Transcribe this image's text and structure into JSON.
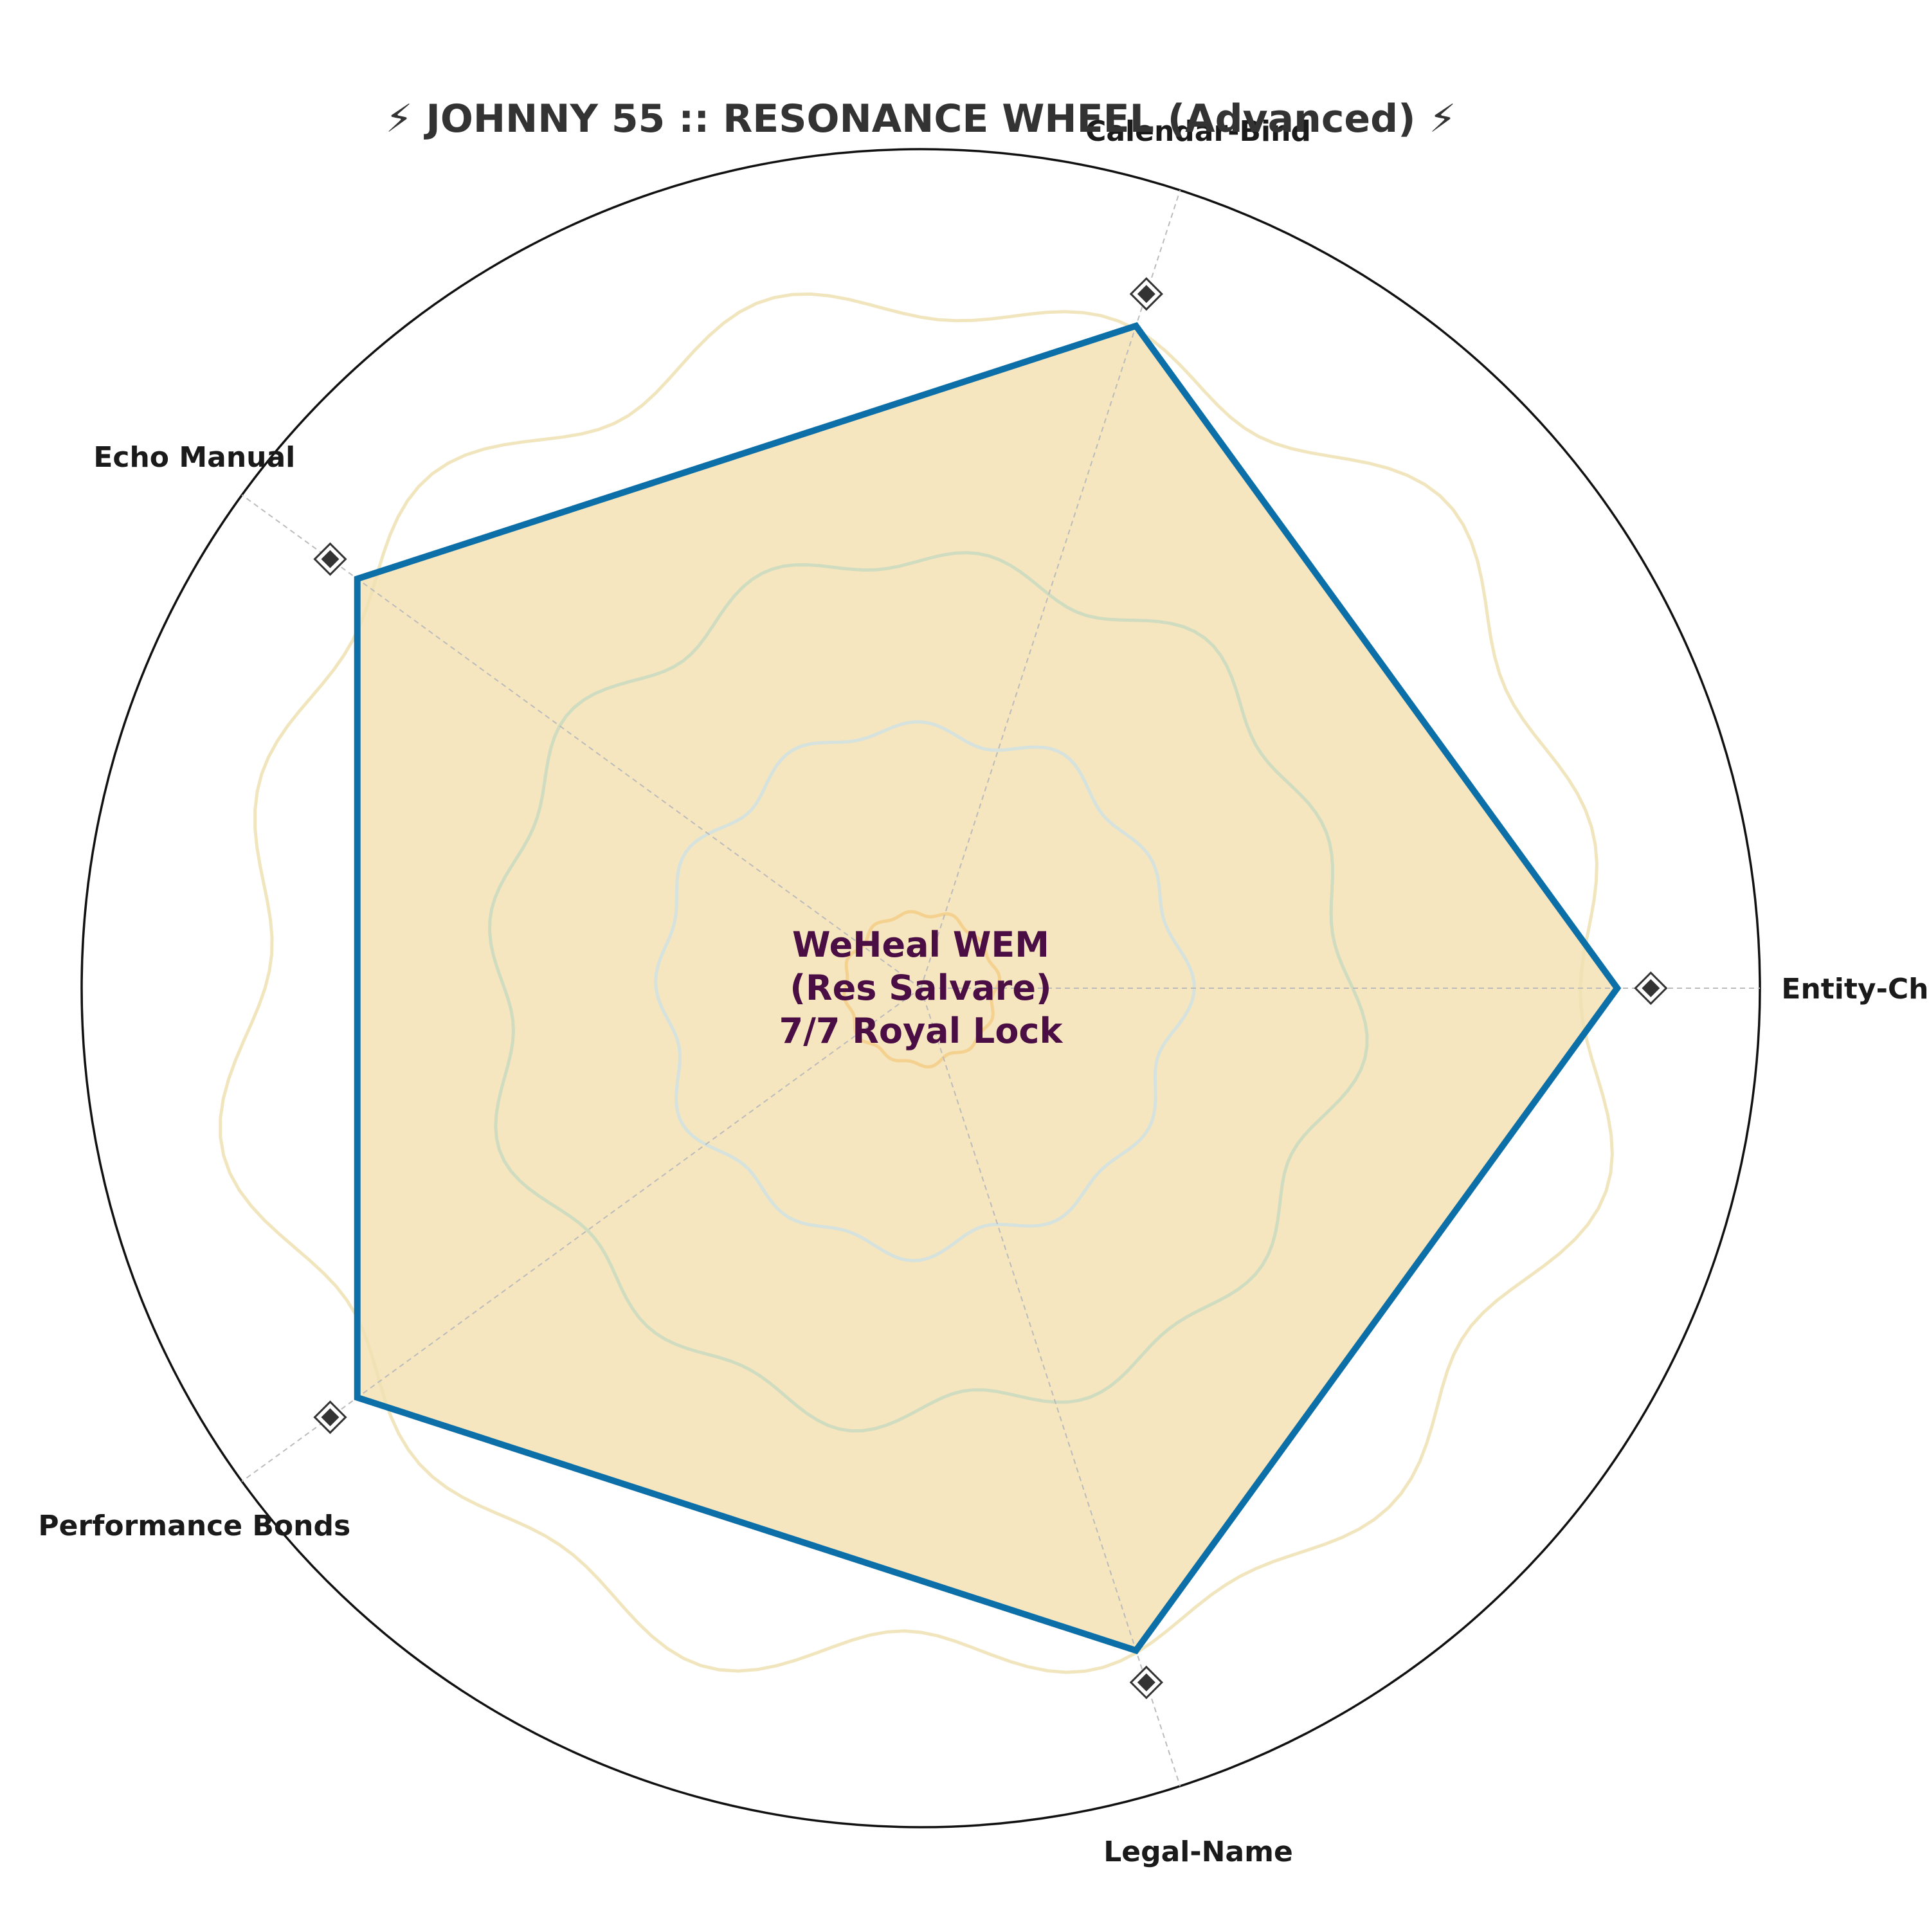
{
  "chart_data": {
    "type": "radar",
    "title": "⚡ JOHNNY 55 :: RESONANCE WHEEL (Advanced) ⚡",
    "categories": [
      "Entity-Chains",
      "Calendar-Bind",
      "Echo Manual",
      "Performance Bonds",
      "Legal-Name"
    ],
    "series": [
      {
        "values": [
          0.83,
          0.83,
          0.83,
          0.83,
          0.83
        ]
      }
    ],
    "rlim": [
      0,
      1
    ],
    "marker_values": [
      0.87,
      0.87,
      0.87,
      0.87,
      0.87
    ],
    "ripple_rings": [
      0.09,
      0.31,
      0.51,
      0.81
    ],
    "grid": true,
    "center_label": [
      "WeHeal WEM",
      "(Res Salvare)",
      "7/7 Royal Lock"
    ],
    "colors": {
      "line": "#0d6fa8",
      "fill": "#f5e6bf",
      "marker_fill": "#333333",
      "outer_ring": "#111111",
      "spokes": "#bbbbbb",
      "ripples": [
        "#f3cc85",
        "#cfe0e2",
        "#c9d9c0",
        "#efe1b3"
      ]
    }
  }
}
